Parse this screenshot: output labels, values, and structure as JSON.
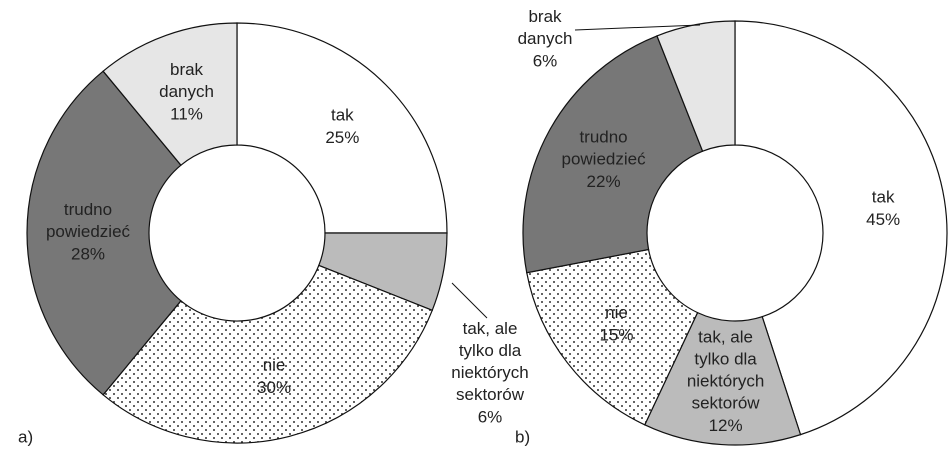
{
  "chart_data": [
    {
      "type": "donut",
      "title": "a)",
      "categories": [
        "tak",
        "tak, ale tylko dla niektórych sektorów",
        "nie",
        "trudno powiedzieć",
        "brak danych"
      ],
      "values": [
        25,
        6,
        30,
        28,
        11
      ],
      "value_labels": [
        "25%",
        "6%",
        "30%",
        "28%",
        "11%"
      ],
      "colors": [
        "#ffffff",
        "#bbbbbb",
        "dots",
        "#777777",
        "#e6e6e6"
      ]
    },
    {
      "type": "donut",
      "title": "b)",
      "categories": [
        "tak",
        "tak, ale tylko dla niektórych sektorów",
        "nie",
        "trudno powiedzieć",
        "brak danych"
      ],
      "values": [
        45,
        12,
        15,
        22,
        6
      ],
      "value_labels": [
        "45%",
        "12%",
        "15%",
        "22%",
        "6%"
      ],
      "colors": [
        "#ffffff",
        "#bbbbbb",
        "dots",
        "#777777",
        "#e6e6e6"
      ]
    }
  ]
}
